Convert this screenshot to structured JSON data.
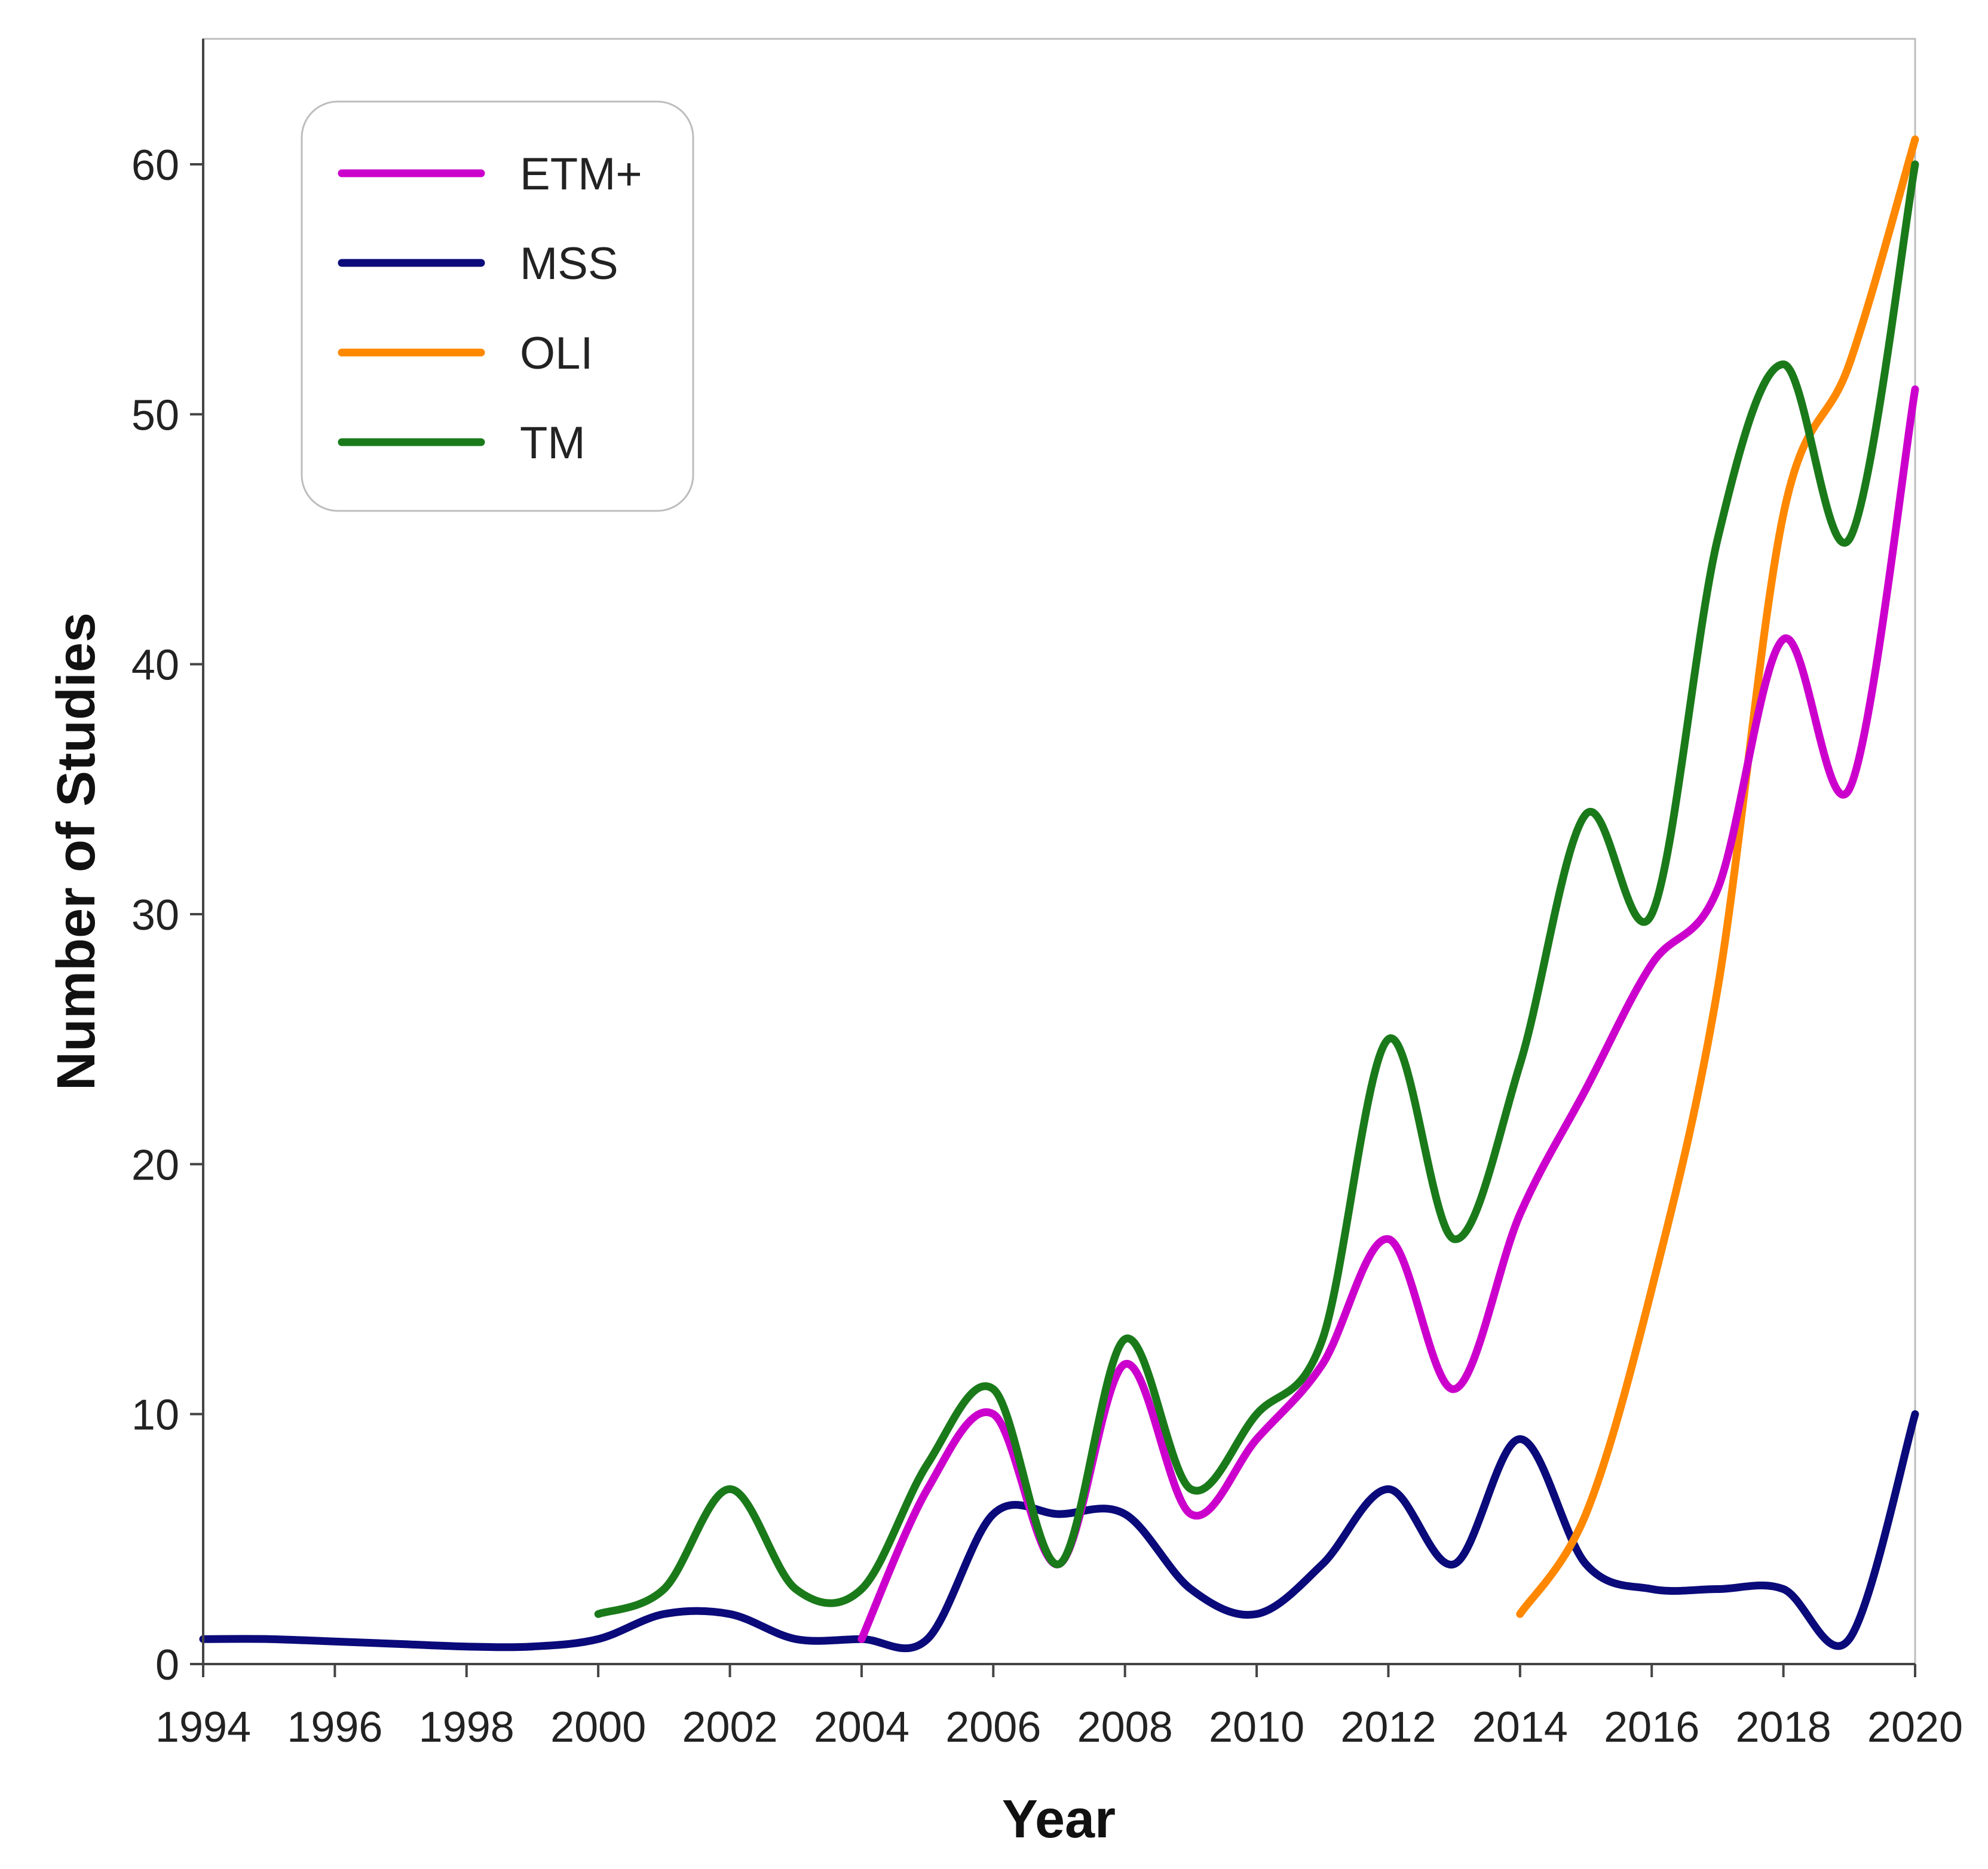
{
  "chart_data": {
    "type": "line",
    "title": "",
    "xlabel": "Year",
    "ylabel": "Number of Studies",
    "xlim": [
      1994,
      2020
    ],
    "ylim": [
      0,
      65
    ],
    "x_ticks": [
      1994,
      1996,
      1998,
      2000,
      2002,
      2004,
      2006,
      2008,
      2010,
      2012,
      2014,
      2016,
      2018,
      2020
    ],
    "y_ticks": [
      0,
      10,
      20,
      30,
      40,
      50,
      60
    ],
    "grid": false,
    "legend_position": "top-left",
    "series": [
      {
        "name": "ETM+",
        "color": "#cc00cc",
        "x": [
          2004,
          2005,
          2006,
          2007,
          2008,
          2009,
          2010,
          2011,
          2012,
          2013,
          2014,
          2015,
          2016,
          2017,
          2018,
          2019,
          2020
        ],
        "values": [
          1,
          7,
          10,
          4,
          12,
          6,
          9,
          12,
          17,
          11,
          18,
          23,
          28,
          31,
          41,
          35,
          51
        ]
      },
      {
        "name": "MSS",
        "color": "#0a0a7a",
        "x": [
          1994,
          1995,
          1996,
          1997,
          1998,
          1999,
          2000,
          2001,
          2002,
          2003,
          2004,
          2005,
          2006,
          2007,
          2008,
          2009,
          2010,
          2011,
          2012,
          2013,
          2014,
          2015,
          2016,
          2017,
          2018,
          2019,
          2020
        ],
        "values": [
          1,
          1,
          0.9,
          0.8,
          0.7,
          0.7,
          1,
          2,
          2,
          1,
          1,
          1,
          6,
          6,
          6,
          3,
          2,
          4,
          7,
          4,
          9,
          4,
          3,
          3,
          3,
          1,
          10
        ]
      },
      {
        "name": "OLI",
        "color": "#ff8800",
        "x": [
          2014,
          2015,
          2016,
          2017,
          2018,
          2019,
          2020
        ],
        "values": [
          2,
          6,
          15,
          27,
          46,
          52,
          61
        ]
      },
      {
        "name": "TM",
        "color": "#1a7a1a",
        "x": [
          2000,
          2001,
          2002,
          2003,
          2004,
          2005,
          2006,
          2007,
          2008,
          2009,
          2010,
          2011,
          2012,
          2013,
          2014,
          2015,
          2016,
          2017,
          2018,
          2019,
          2020
        ],
        "values": [
          2,
          3,
          7,
          3,
          3,
          8,
          11,
          4,
          13,
          7,
          10,
          13,
          25,
          17,
          24,
          34,
          30,
          45,
          52,
          45,
          60
        ]
      }
    ]
  }
}
